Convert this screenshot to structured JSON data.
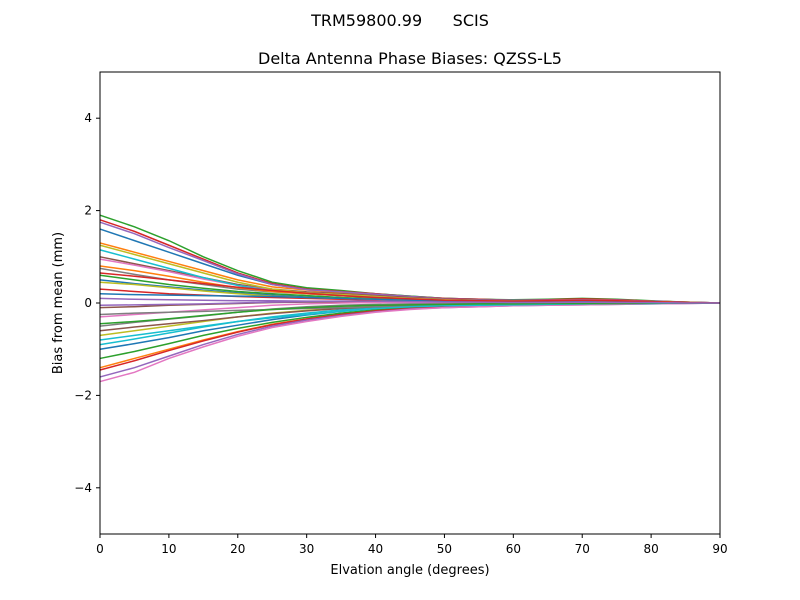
{
  "figure": {
    "suptitle": "TRM59800.99      SCIS"
  },
  "chart_data": {
    "type": "line",
    "title": "Delta Antenna Phase Biases: QZSS-L5",
    "xlabel": "Elvation angle (degrees)",
    "ylabel": "Bias from mean (mm)",
    "xlim": [
      0,
      90
    ],
    "ylim": [
      -5,
      5
    ],
    "xticks": [
      0,
      10,
      20,
      30,
      40,
      50,
      60,
      70,
      80,
      90
    ],
    "xtick_labels": [
      "0",
      "10",
      "20",
      "30",
      "40",
      "50",
      "60",
      "70",
      "80",
      "90"
    ],
    "yticks": [
      -4,
      -2,
      0,
      2,
      4
    ],
    "ytick_labels": [
      "−4",
      "−2",
      "0",
      "2",
      "4"
    ],
    "grid": false,
    "x": [
      0,
      5,
      10,
      15,
      20,
      25,
      30,
      35,
      40,
      45,
      50,
      55,
      60,
      65,
      70,
      75,
      80,
      85,
      90
    ],
    "series": [
      {
        "color": "#1f77b4",
        "values": [
          1.6,
          1.35,
          1.1,
          0.85,
          0.6,
          0.4,
          0.3,
          0.25,
          0.2,
          0.15,
          0.1,
          0.08,
          0.06,
          0.05,
          0.05,
          0.04,
          0.03,
          0.02,
          0.0
        ]
      },
      {
        "color": "#ff7f0e",
        "values": [
          1.3,
          1.1,
          0.9,
          0.7,
          0.5,
          0.35,
          0.28,
          0.22,
          0.18,
          0.13,
          0.09,
          0.07,
          0.06,
          0.07,
          0.08,
          0.06,
          0.04,
          0.02,
          0.0
        ]
      },
      {
        "color": "#2ca02c",
        "values": [
          1.9,
          1.65,
          1.35,
          1.0,
          0.7,
          0.45,
          0.33,
          0.27,
          0.2,
          0.15,
          0.1,
          0.08,
          0.07,
          0.08,
          0.1,
          0.08,
          0.05,
          0.02,
          0.0
        ]
      },
      {
        "color": "#d62728",
        "values": [
          1.8,
          1.55,
          1.25,
          0.95,
          0.65,
          0.42,
          0.3,
          0.25,
          0.2,
          0.14,
          0.1,
          0.08,
          0.06,
          0.07,
          0.09,
          0.07,
          0.04,
          0.02,
          0.0
        ]
      },
      {
        "color": "#9467bd",
        "values": [
          1.75,
          1.5,
          1.2,
          0.92,
          0.63,
          0.4,
          0.29,
          0.24,
          0.19,
          0.14,
          0.09,
          0.07,
          0.06,
          0.06,
          0.07,
          0.06,
          0.04,
          0.02,
          0.0
        ]
      },
      {
        "color": "#8c564b",
        "values": [
          1.0,
          0.85,
          0.7,
          0.55,
          0.4,
          0.3,
          0.24,
          0.2,
          0.16,
          0.12,
          0.08,
          0.06,
          0.05,
          0.05,
          0.06,
          0.05,
          0.03,
          0.01,
          0.0
        ]
      },
      {
        "color": "#e377c2",
        "values": [
          0.95,
          0.82,
          0.68,
          0.52,
          0.38,
          0.28,
          0.22,
          0.18,
          0.14,
          0.1,
          0.07,
          0.05,
          0.04,
          0.05,
          0.06,
          0.05,
          0.03,
          0.01,
          0.0
        ]
      },
      {
        "color": "#7f7f7f",
        "values": [
          0.75,
          0.62,
          0.5,
          0.4,
          0.3,
          0.24,
          0.2,
          0.16,
          0.12,
          0.09,
          0.06,
          0.05,
          0.04,
          0.04,
          0.05,
          0.04,
          0.03,
          0.01,
          0.0
        ]
      },
      {
        "color": "#bcbd22",
        "values": [
          1.25,
          1.05,
          0.85,
          0.65,
          0.45,
          0.3,
          0.22,
          0.18,
          0.14,
          0.1,
          0.07,
          0.05,
          0.04,
          0.04,
          0.05,
          0.04,
          0.03,
          0.01,
          0.0
        ]
      },
      {
        "color": "#17becf",
        "values": [
          1.15,
          0.95,
          0.75,
          0.55,
          0.38,
          0.26,
          0.2,
          0.16,
          0.12,
          0.09,
          0.06,
          0.04,
          0.04,
          0.04,
          0.05,
          0.04,
          0.02,
          0.01,
          0.0
        ]
      },
      {
        "color": "#1f77b4",
        "values": [
          0.5,
          0.42,
          0.35,
          0.28,
          0.22,
          0.17,
          0.13,
          0.1,
          0.08,
          0.06,
          0.04,
          0.03,
          0.03,
          0.03,
          0.04,
          0.03,
          0.02,
          0.01,
          0.0
        ]
      },
      {
        "color": "#ff7f0e",
        "values": [
          0.8,
          0.7,
          0.58,
          0.45,
          0.33,
          0.25,
          0.2,
          0.16,
          0.12,
          0.09,
          0.06,
          0.05,
          0.04,
          0.05,
          0.06,
          0.05,
          0.03,
          0.01,
          0.0
        ]
      },
      {
        "color": "#2ca02c",
        "values": [
          0.6,
          0.5,
          0.4,
          0.32,
          0.25,
          0.2,
          0.16,
          0.12,
          0.09,
          0.07,
          0.05,
          0.04,
          0.03,
          0.03,
          0.04,
          0.03,
          0.02,
          0.01,
          0.0
        ]
      },
      {
        "color": "#d62728",
        "values": [
          0.3,
          0.25,
          0.2,
          0.17,
          0.14,
          0.12,
          0.1,
          0.08,
          0.06,
          0.05,
          0.03,
          0.03,
          0.02,
          0.03,
          0.03,
          0.02,
          0.02,
          0.01,
          0.0
        ]
      },
      {
        "color": "#9467bd",
        "values": [
          0.1,
          0.08,
          0.07,
          0.06,
          0.05,
          0.05,
          0.04,
          0.04,
          0.03,
          0.03,
          0.02,
          0.02,
          0.02,
          0.02,
          0.03,
          0.02,
          0.01,
          0.0,
          0.0
        ]
      },
      {
        "color": "#8c564b",
        "values": [
          -0.1,
          -0.08,
          -0.05,
          -0.03,
          -0.01,
          0.01,
          0.02,
          0.02,
          0.02,
          0.02,
          0.01,
          0.01,
          0.01,
          0.01,
          0.02,
          0.01,
          0.01,
          0.0,
          0.0
        ]
      },
      {
        "color": "#e377c2",
        "values": [
          -0.3,
          -0.25,
          -0.2,
          -0.15,
          -0.1,
          -0.05,
          -0.02,
          0.0,
          0.01,
          0.01,
          0.0,
          0.0,
          0.0,
          0.0,
          0.01,
          0.01,
          0.0,
          0.0,
          0.0
        ]
      },
      {
        "color": "#7f7f7f",
        "values": [
          -0.5,
          -0.42,
          -0.35,
          -0.28,
          -0.2,
          -0.13,
          -0.08,
          -0.05,
          -0.03,
          -0.02,
          -0.02,
          -0.01,
          -0.01,
          -0.01,
          0.0,
          0.0,
          0.0,
          0.0,
          0.0
        ]
      },
      {
        "color": "#bcbd22",
        "values": [
          -0.7,
          -0.6,
          -0.5,
          -0.4,
          -0.3,
          -0.22,
          -0.16,
          -0.11,
          -0.07,
          -0.05,
          -0.04,
          -0.03,
          -0.02,
          -0.02,
          -0.01,
          -0.01,
          0.0,
          0.0,
          0.0
        ]
      },
      {
        "color": "#17becf",
        "values": [
          -0.9,
          -0.78,
          -0.65,
          -0.52,
          -0.4,
          -0.3,
          -0.22,
          -0.15,
          -0.1,
          -0.07,
          -0.05,
          -0.04,
          -0.03,
          -0.02,
          -0.02,
          -0.01,
          -0.01,
          0.0,
          0.0
        ]
      },
      {
        "color": "#1f77b4",
        "values": [
          -1.0,
          -0.88,
          -0.75,
          -0.6,
          -0.48,
          -0.36,
          -0.26,
          -0.18,
          -0.12,
          -0.08,
          -0.06,
          -0.05,
          -0.04,
          -0.03,
          -0.02,
          -0.02,
          -0.01,
          0.0,
          0.0
        ]
      },
      {
        "color": "#ff7f0e",
        "values": [
          -1.4,
          -1.2,
          -1.0,
          -0.8,
          -0.62,
          -0.46,
          -0.34,
          -0.24,
          -0.16,
          -0.11,
          -0.08,
          -0.06,
          -0.05,
          -0.04,
          -0.03,
          -0.02,
          -0.01,
          0.0,
          0.0
        ]
      },
      {
        "color": "#2ca02c",
        "values": [
          -1.2,
          -1.05,
          -0.88,
          -0.7,
          -0.55,
          -0.42,
          -0.31,
          -0.22,
          -0.15,
          -0.1,
          -0.07,
          -0.06,
          -0.05,
          -0.04,
          -0.03,
          -0.02,
          -0.01,
          0.0,
          0.0
        ]
      },
      {
        "color": "#d62728",
        "values": [
          -1.45,
          -1.25,
          -1.03,
          -0.82,
          -0.63,
          -0.47,
          -0.35,
          -0.25,
          -0.17,
          -0.12,
          -0.09,
          -0.07,
          -0.05,
          -0.04,
          -0.03,
          -0.02,
          -0.01,
          0.0,
          0.0
        ]
      },
      {
        "color": "#9467bd",
        "values": [
          -1.6,
          -1.4,
          -1.15,
          -0.9,
          -0.68,
          -0.5,
          -0.37,
          -0.27,
          -0.19,
          -0.13,
          -0.1,
          -0.08,
          -0.06,
          -0.05,
          -0.04,
          -0.03,
          -0.02,
          -0.01,
          0.0
        ]
      },
      {
        "color": "#8c564b",
        "values": [
          -0.6,
          -0.52,
          -0.45,
          -0.38,
          -0.3,
          -0.23,
          -0.17,
          -0.12,
          -0.08,
          -0.06,
          -0.05,
          -0.04,
          -0.03,
          -0.02,
          -0.02,
          -0.01,
          -0.01,
          0.0,
          0.0
        ]
      },
      {
        "color": "#e377c2",
        "values": [
          -1.7,
          -1.5,
          -1.2,
          -0.95,
          -0.72,
          -0.53,
          -0.4,
          -0.29,
          -0.2,
          -0.14,
          -0.1,
          -0.08,
          -0.06,
          -0.05,
          -0.04,
          -0.03,
          -0.02,
          -0.01,
          0.0
        ]
      },
      {
        "color": "#7f7f7f",
        "values": [
          -0.25,
          -0.22,
          -0.2,
          -0.18,
          -0.16,
          -0.14,
          -0.12,
          -0.1,
          -0.08,
          -0.06,
          -0.05,
          -0.04,
          -0.03,
          -0.02,
          -0.02,
          -0.01,
          -0.01,
          0.0,
          0.0
        ]
      },
      {
        "color": "#bcbd22",
        "values": [
          0.45,
          0.4,
          0.33,
          0.26,
          0.2,
          0.15,
          0.12,
          0.1,
          0.08,
          0.06,
          0.05,
          0.04,
          0.03,
          0.04,
          0.05,
          0.04,
          0.02,
          0.01,
          0.0
        ]
      },
      {
        "color": "#17becf",
        "values": [
          -0.8,
          -0.7,
          -0.6,
          -0.5,
          -0.4,
          -0.32,
          -0.25,
          -0.18,
          -0.12,
          -0.08,
          -0.06,
          -0.05,
          -0.04,
          -0.03,
          -0.02,
          -0.01,
          -0.01,
          0.0,
          0.0
        ]
      },
      {
        "color": "#1f77b4",
        "values": [
          0.2,
          0.18,
          0.17,
          0.16,
          0.15,
          0.14,
          0.12,
          0.1,
          0.08,
          0.06,
          0.04,
          0.03,
          0.02,
          0.02,
          0.03,
          0.02,
          0.01,
          0.0,
          0.0
        ]
      },
      {
        "color": "#2ca02c",
        "values": [
          -0.45,
          -0.4,
          -0.34,
          -0.27,
          -0.2,
          -0.14,
          -0.1,
          -0.07,
          -0.05,
          -0.04,
          -0.03,
          -0.02,
          -0.02,
          -0.01,
          -0.01,
          -0.01,
          0.0,
          0.0,
          0.0
        ]
      },
      {
        "color": "#d62728",
        "values": [
          0.65,
          0.58,
          0.5,
          0.42,
          0.34,
          0.27,
          0.21,
          0.16,
          0.12,
          0.09,
          0.06,
          0.05,
          0.04,
          0.05,
          0.06,
          0.05,
          0.03,
          0.01,
          0.0
        ]
      },
      {
        "color": "#9467bd",
        "values": [
          -0.05,
          -0.04,
          -0.03,
          -0.02,
          0.0,
          0.02,
          0.03,
          0.04,
          0.04,
          0.03,
          0.02,
          0.02,
          0.01,
          0.01,
          0.02,
          0.01,
          0.01,
          0.0,
          0.0
        ]
      }
    ]
  }
}
